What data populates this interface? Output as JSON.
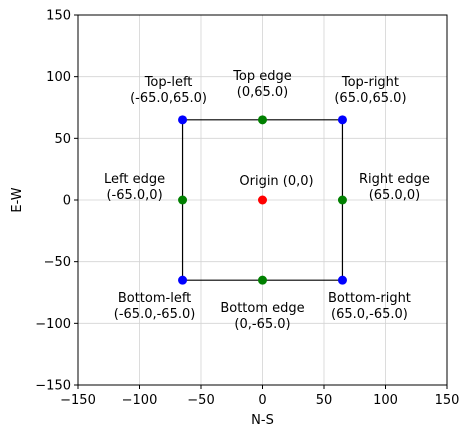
{
  "chart_data": {
    "type": "scatter",
    "xlabel": "N-S",
    "ylabel": "E-W",
    "xlim": [
      -150,
      150
    ],
    "ylim": [
      -150,
      150
    ],
    "xticks": [
      -150,
      -100,
      -50,
      0,
      50,
      100,
      150
    ],
    "yticks": [
      -150,
      -100,
      -50,
      0,
      50,
      100,
      150
    ],
    "xtick_labels": [
      "−150",
      "−100",
      "−50",
      "0",
      "50",
      "100",
      "150"
    ],
    "ytick_labels": [
      "−150",
      "−100",
      "−50",
      "0",
      "50",
      "100",
      "150"
    ],
    "grid": true,
    "colors": {
      "corner": "#0000ff",
      "edge": "#008000",
      "origin": "#ff0000",
      "outline": "#000000",
      "grid": "#d3d3d3"
    },
    "outline": [
      [
        -65,
        -65
      ],
      [
        65,
        -65
      ],
      [
        65,
        65
      ],
      [
        -65,
        65
      ],
      [
        -65,
        -65
      ]
    ],
    "points": [
      {
        "id": "top-left",
        "x": -65,
        "y": 65,
        "kind": "corner",
        "label": [
          "Top-left",
          "(-65.0,65.0)"
        ]
      },
      {
        "id": "top-edge",
        "x": 0,
        "y": 65,
        "kind": "edge",
        "label": [
          "Top edge",
          "(0,65.0)"
        ]
      },
      {
        "id": "top-right",
        "x": 65,
        "y": 65,
        "kind": "corner",
        "label": [
          "Top-right",
          "(65.0,65.0)"
        ]
      },
      {
        "id": "left-edge",
        "x": -65,
        "y": 0,
        "kind": "edge",
        "label": [
          "Left edge",
          "(-65.0,0)"
        ]
      },
      {
        "id": "origin",
        "x": 0,
        "y": 0,
        "kind": "origin",
        "label": [
          "Origin (0,0)"
        ]
      },
      {
        "id": "right-edge",
        "x": 65,
        "y": 0,
        "kind": "edge",
        "label": [
          "Right edge",
          "(65.0,0)"
        ]
      },
      {
        "id": "bottom-left",
        "x": -65,
        "y": -65,
        "kind": "corner",
        "label": [
          "Bottom-left",
          "(-65.0,-65.0)"
        ]
      },
      {
        "id": "bottom-edge",
        "x": 0,
        "y": -65,
        "kind": "edge",
        "label": [
          "Bottom edge",
          "(0,-65.0)"
        ]
      },
      {
        "id": "bottom-right",
        "x": 65,
        "y": -65,
        "kind": "corner",
        "label": [
          "Bottom-right",
          "(65.0,-65.0)"
        ]
      }
    ]
  }
}
